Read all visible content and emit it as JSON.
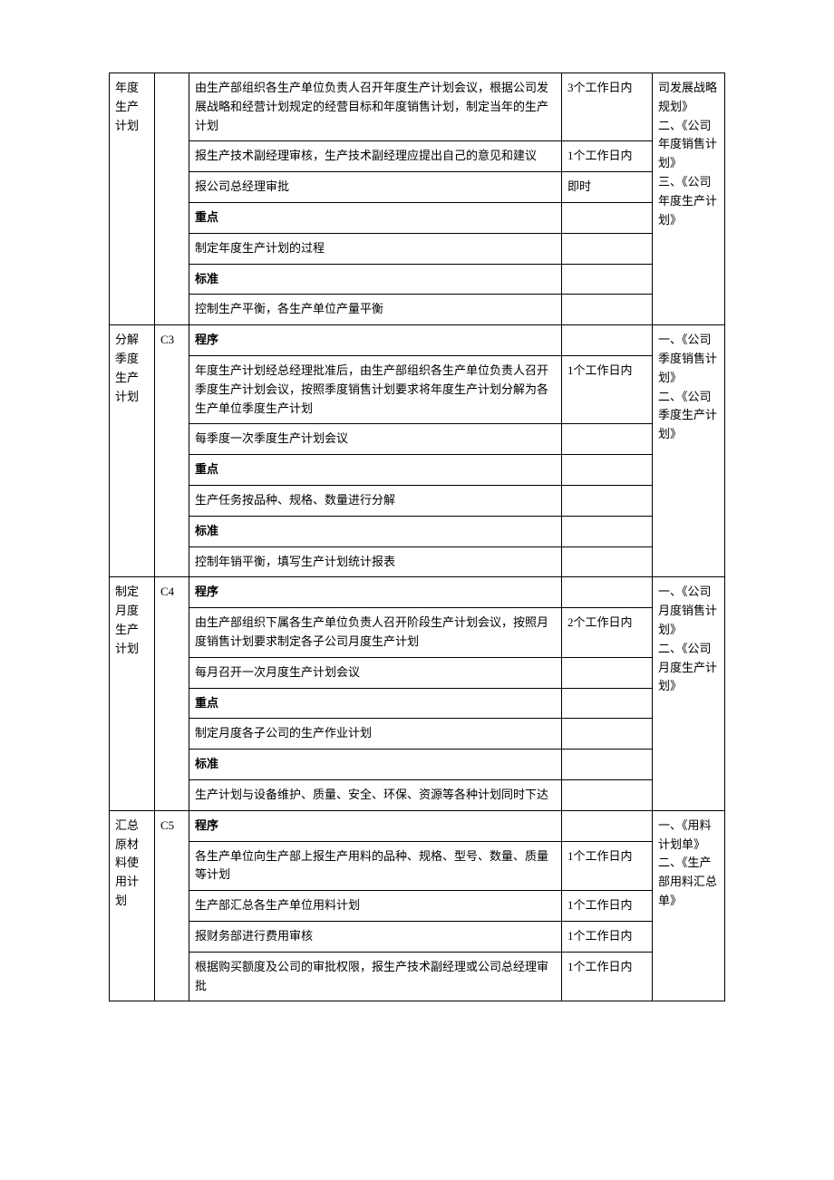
{
  "sections": [
    {
      "title": "年度生产计划",
      "code": "",
      "rows": [
        {
          "desc": "由生产部组织各生产单位负责人召开年度生产计划会议，根据公司发展战略和经营计划规定的经营目标和年度销售计划，制定当年的生产计划",
          "time": "3个工作日内"
        },
        {
          "desc": "报生产技术副经理审核，生产技术副经理应提出自己的意见和建议",
          "time": "1个工作日内"
        },
        {
          "desc": "报公司总经理审批",
          "time": "即时"
        },
        {
          "desc": "重点",
          "time": "",
          "bold": true
        },
        {
          "desc": "制定年度生产计划的过程",
          "time": ""
        },
        {
          "desc": "标准",
          "time": "",
          "bold": true
        },
        {
          "desc": "控制生产平衡，各生产单位产量平衡",
          "time": ""
        }
      ],
      "refs": "司发展战略规划》\n二、《公司年度销售计划》\n三、《公司年度生产计划》"
    },
    {
      "title": "分解季度生产计划",
      "code": "C3",
      "rows": [
        {
          "desc": "程序",
          "time": "",
          "bold": true
        },
        {
          "desc": "年度生产计划经总经理批准后，由生产部组织各生产单位负责人召开季度生产计划会议，按照季度销售计划要求将年度生产计划分解为各生产单位季度生产计划",
          "time": "1个工作日内"
        },
        {
          "desc": "每季度一次季度生产计划会议",
          "time": ""
        },
        {
          "desc": "重点",
          "time": "",
          "bold": true
        },
        {
          "desc": "生产任务按品种、规格、数量进行分解",
          "time": ""
        },
        {
          "desc": "标准",
          "time": "",
          "bold": true
        },
        {
          "desc": "控制年销平衡，填写生产计划统计报表",
          "time": ""
        }
      ],
      "refs": "一、《公司季度销售计划》\n二、《公司季度生产计划》"
    },
    {
      "title": "制定月度生产计划",
      "code": "C4",
      "rows": [
        {
          "desc": "程序",
          "time": "",
          "bold": true
        },
        {
          "desc": "由生产部组织下属各生产单位负责人召开阶段生产计划会议，按照月度销售计划要求制定各子公司月度生产计划",
          "time": "2个工作日内"
        },
        {
          "desc": "每月召开一次月度生产计划会议",
          "time": ""
        },
        {
          "desc": "重点",
          "time": "",
          "bold": true
        },
        {
          "desc": "制定月度各子公司的生产作业计划",
          "time": ""
        },
        {
          "desc": "标准",
          "time": "",
          "bold": true
        },
        {
          "desc": "生产计划与设备维护、质量、安全、环保、资源等各种计划同时下达",
          "time": ""
        }
      ],
      "refs": "一、《公司月度销售计划》\n二、《公司月度生产计划》"
    },
    {
      "title": "汇总原材料使用计划",
      "code": "C5",
      "rows": [
        {
          "desc": "程序",
          "time": "",
          "bold": true
        },
        {
          "desc": "各生产单位向生产部上报生产用料的品种、规格、型号、数量、质量等计划",
          "time": "1个工作日内"
        },
        {
          "desc": "生产部汇总各生产单位用料计划",
          "time": "1个工作日内"
        },
        {
          "desc": "报财务部进行费用审核",
          "time": "1个工作日内"
        },
        {
          "desc": "根据购买额度及公司的审批权限，报生产技术副经理或公司总经理审批",
          "time": "1个工作日内"
        }
      ],
      "refs": "一、《用料计划单》\n二、《生产部用料汇总单》"
    }
  ]
}
